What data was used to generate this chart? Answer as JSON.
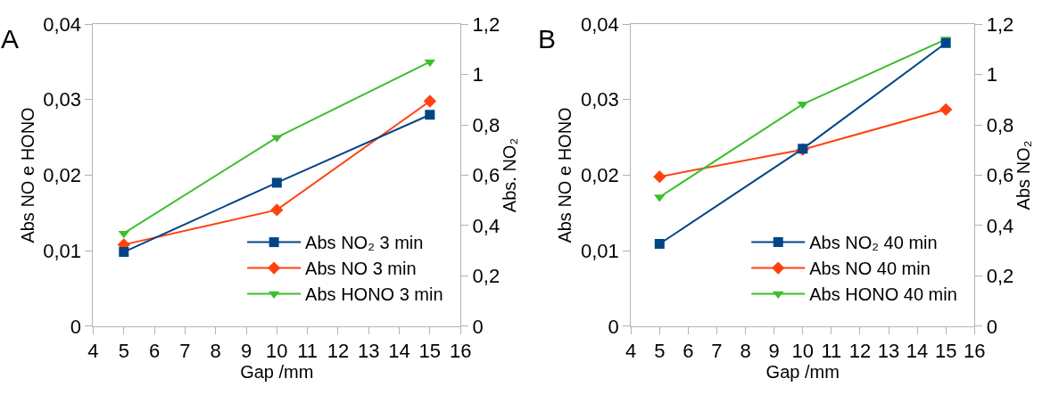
{
  "chart_data": [
    {
      "type": "line",
      "annotations": [
        "A"
      ],
      "xlabel": "Gap /mm",
      "ylabel": "Abs NO e HONO",
      "y2label": "Abs. NO₂",
      "x": [
        5,
        10,
        15
      ],
      "xlim": [
        4,
        16
      ],
      "xticks": [
        4,
        5,
        6,
        7,
        8,
        9,
        10,
        11,
        12,
        13,
        14,
        15,
        16
      ],
      "ylim": [
        0,
        0.04
      ],
      "yticks": [
        0,
        {
          "value": 0.01,
          "label": "0,01"
        },
        {
          "value": 0.02,
          "label": "0,02"
        },
        {
          "value": 0.03,
          "label": "0,03"
        },
        {
          "value": 0.04,
          "label": "0,04"
        }
      ],
      "y2lim": [
        0,
        1.2
      ],
      "y2ticks": [
        0,
        {
          "value": 0.2,
          "label": "0,2"
        },
        {
          "value": 0.4,
          "label": "0,4"
        },
        {
          "value": 0.6,
          "label": "0,6"
        },
        {
          "value": 0.8,
          "label": "0,8"
        },
        1,
        {
          "value": 1.2,
          "label": "1,2"
        }
      ],
      "grid": false,
      "legend": "bottom right",
      "line_style": "solid",
      "series": [
        {
          "name": "Abs NO₂ 3 min",
          "color": "#004586",
          "marker": "square",
          "axis": "y2",
          "values": [
            0.295,
            0.57,
            0.84
          ]
        },
        {
          "name": "Abs NO 3 min",
          "color": "#ff420e",
          "marker": "diamond",
          "values": [
            0.0108,
            0.0154,
            0.0298
          ]
        },
        {
          "name": "Abs HONO 3 min",
          "color": "#3cbf2c",
          "marker": "triangle",
          "values": [
            0.0123,
            0.025,
            0.035
          ]
        }
      ]
    },
    {
      "type": "line",
      "annotations": [
        "B"
      ],
      "xlabel": "Gap /mm",
      "ylabel": "Abs NO e HONO",
      "y2label": "Abs NO₂",
      "x": [
        5,
        10,
        15
      ],
      "xlim": [
        4,
        16
      ],
      "xticks": [
        4,
        5,
        6,
        7,
        8,
        9,
        10,
        11,
        12,
        13,
        14,
        15,
        16
      ],
      "ylim": [
        0,
        0.04
      ],
      "yticks": [
        0,
        {
          "value": 0.01,
          "label": "0,01"
        },
        {
          "value": 0.02,
          "label": "0,02"
        },
        {
          "value": 0.03,
          "label": "0,03"
        },
        {
          "value": 0.04,
          "label": "0,04"
        }
      ],
      "y2lim": [
        0,
        1.2
      ],
      "y2ticks": [
        0,
        {
          "value": 0.2,
          "label": "0,2"
        },
        {
          "value": 0.4,
          "label": "0,4"
        },
        {
          "value": 0.6,
          "label": "0,6"
        },
        {
          "value": 0.8,
          "label": "0,8"
        },
        1,
        {
          "value": 1.2,
          "label": "1,2"
        }
      ],
      "grid": false,
      "legend": "bottom right",
      "line_style": "solid",
      "series": [
        {
          "name": "Abs NO₂ 40 min",
          "color": "#004586",
          "marker": "square",
          "axis": "y2",
          "values": [
            0.327,
            0.705,
            1.125
          ]
        },
        {
          "name": "Abs NO 40 min",
          "color": "#ff420e",
          "marker": "diamond",
          "values": [
            0.0198,
            0.0234,
            0.0287
          ]
        },
        {
          "name": "Abs HONO 40 min",
          "color": "#3cbf2c",
          "marker": "triangle",
          "values": [
            0.0171,
            0.0294,
            0.038
          ]
        }
      ]
    }
  ]
}
